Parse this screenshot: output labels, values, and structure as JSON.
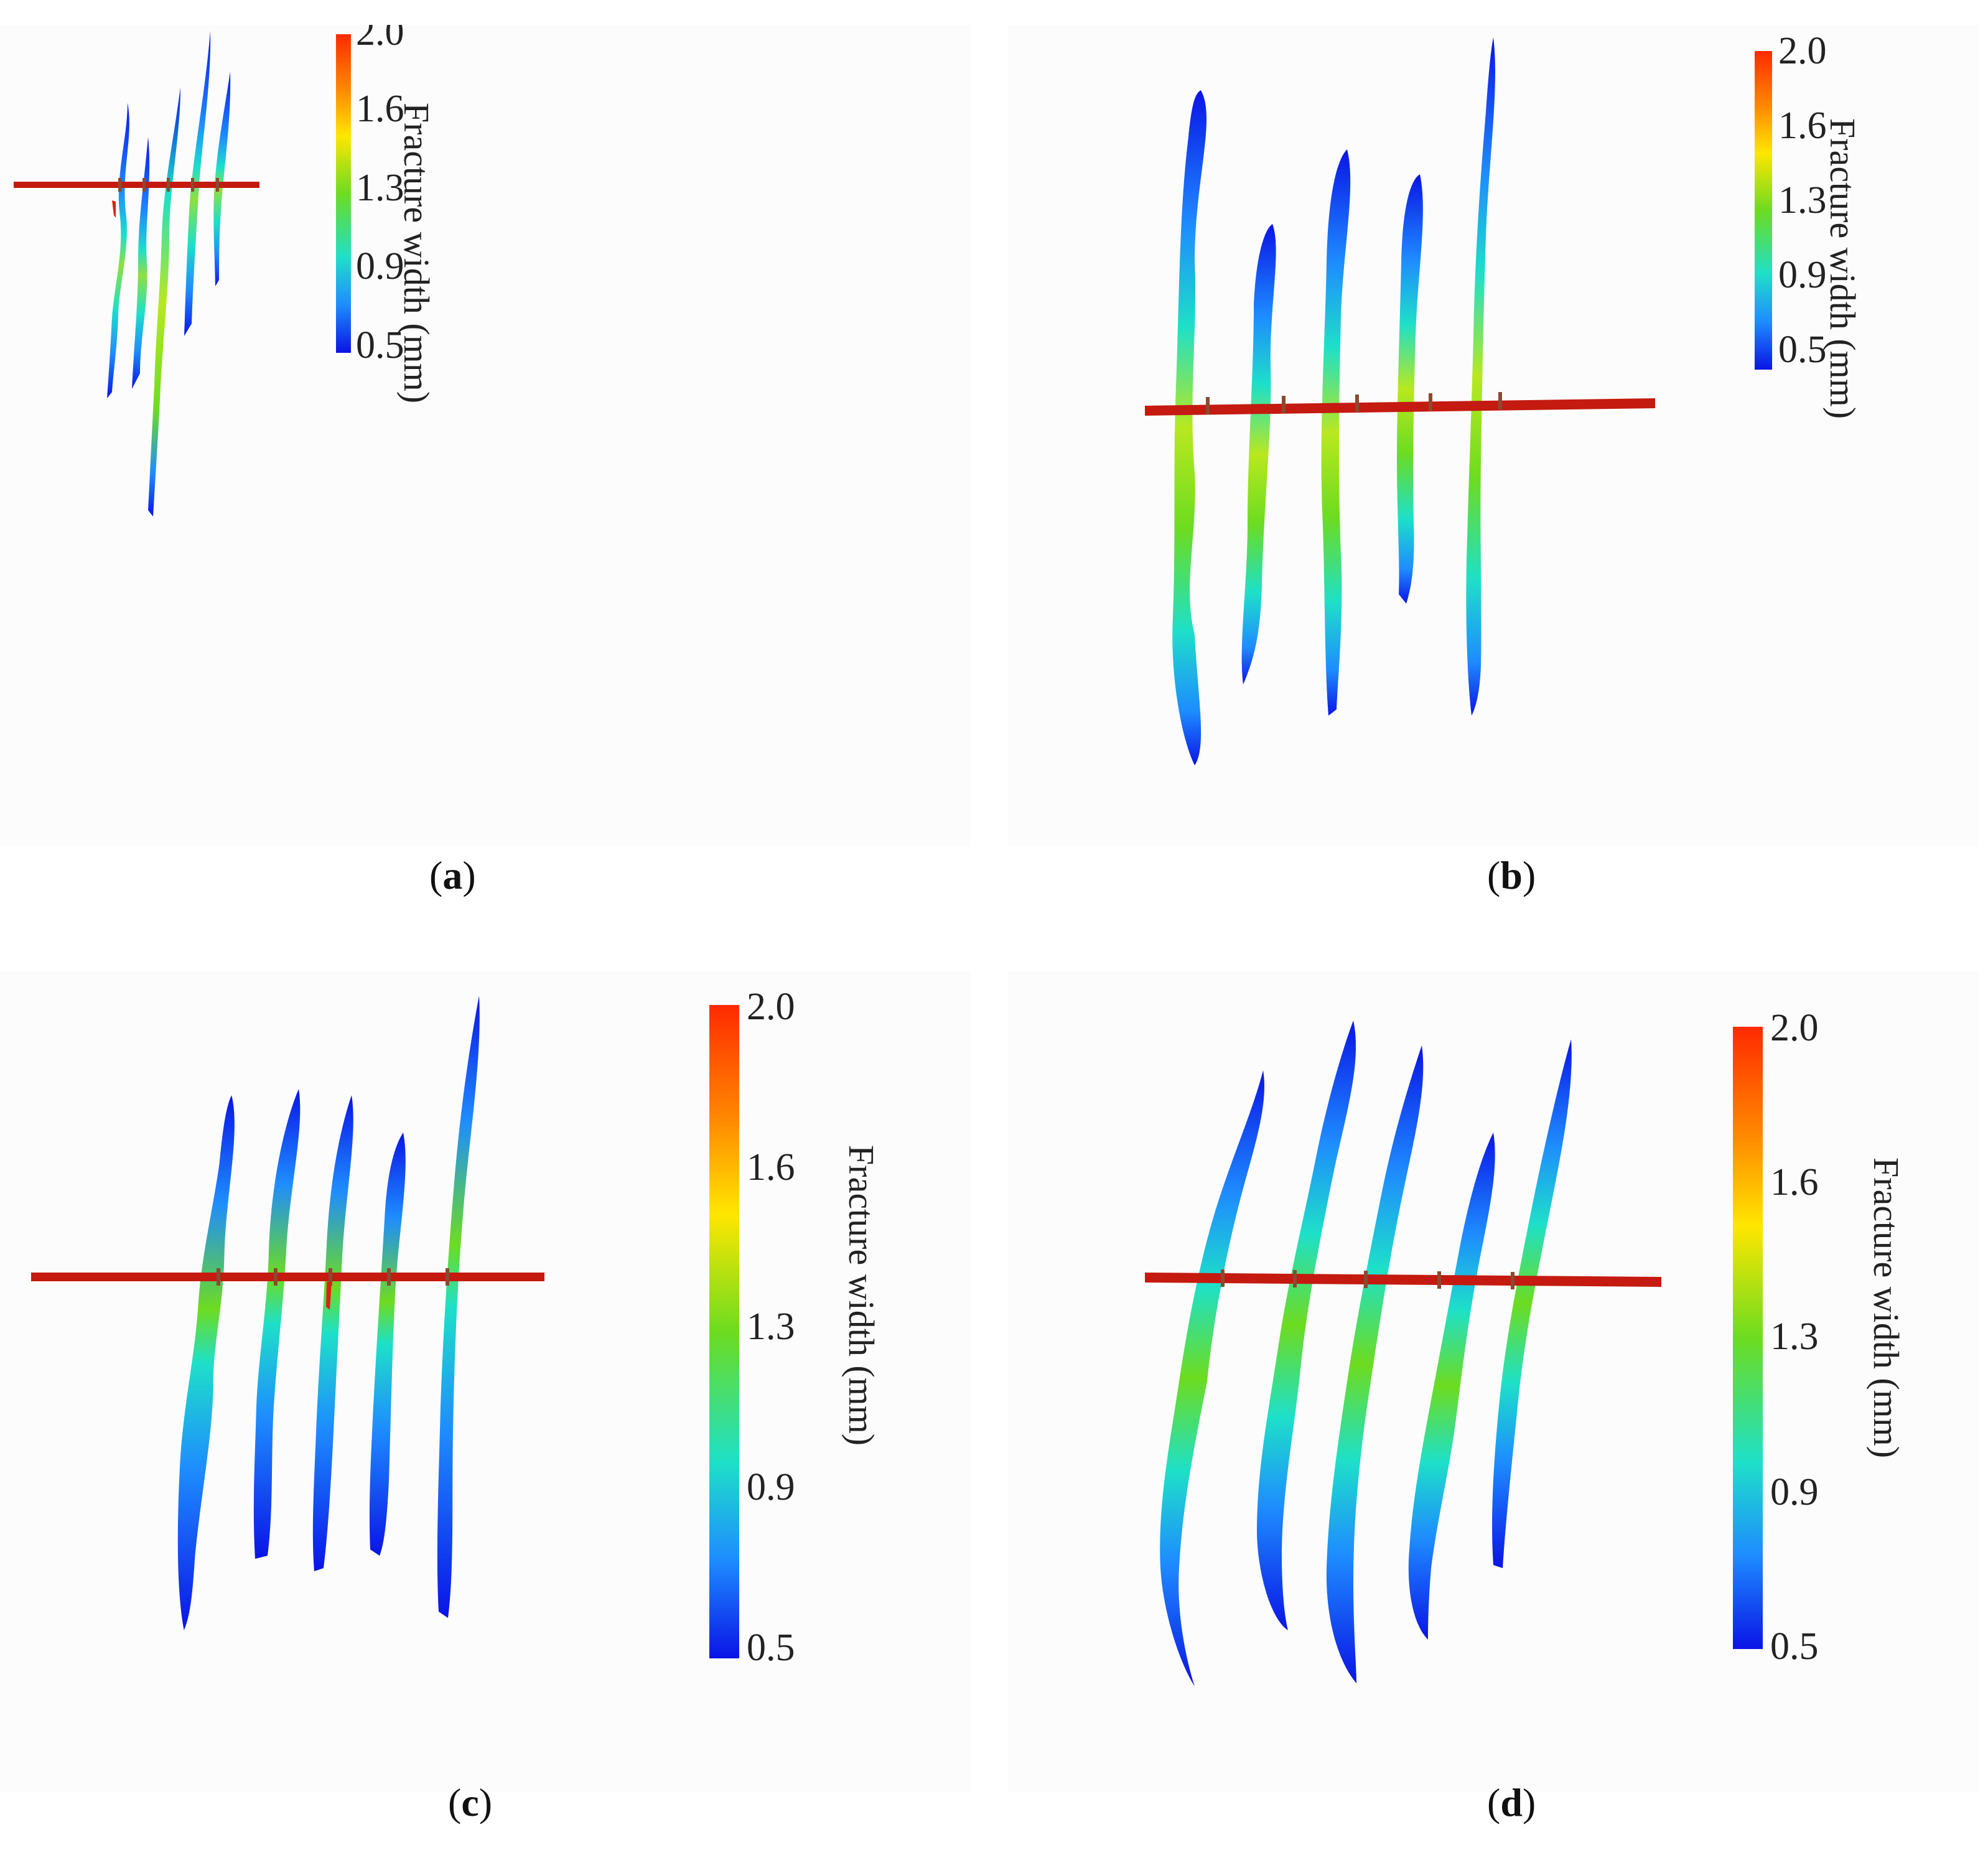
{
  "colorbar": {
    "label": "Fracture width (mm)",
    "ticks": [
      "2.0",
      "1.6",
      "1.3",
      "0.9",
      "0.5"
    ],
    "colors": [
      "#ff2a00",
      "#ff8c00",
      "#ffe600",
      "#6ddc20",
      "#1ee0c8",
      "#1e8cff",
      "#0a14e6"
    ]
  },
  "panels": [
    {
      "id": "a",
      "label": "a"
    },
    {
      "id": "b",
      "label": "b"
    },
    {
      "id": "c",
      "label": "c"
    },
    {
      "id": "d",
      "label": "d"
    }
  ]
}
